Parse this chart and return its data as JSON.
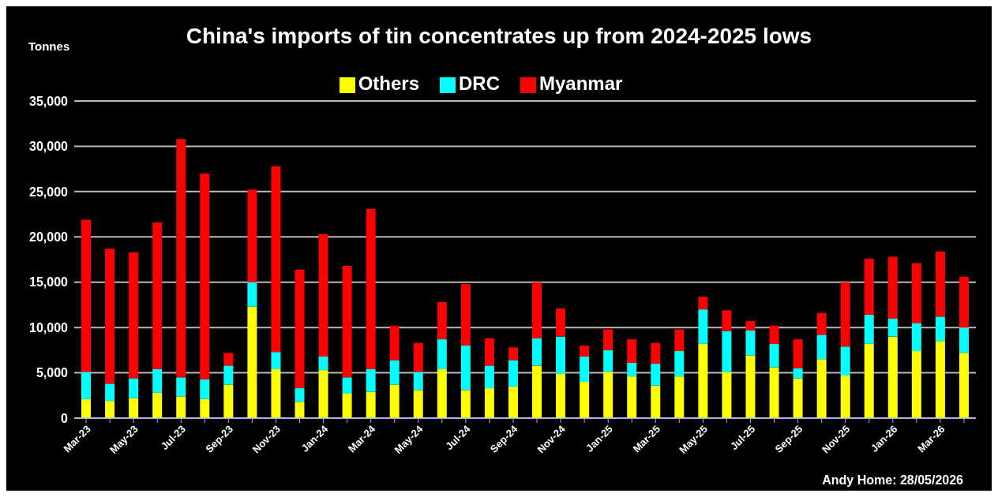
{
  "chart_data": {
    "type": "bar",
    "title": "China's imports of tin concentrates up from 2024-2025 lows",
    "ylabel": "Tonnes",
    "annotations": [
      "Andy Home: 28/05/2026"
    ],
    "categories": [
      "Mar-23",
      null,
      "May-23",
      null,
      "Jul-23",
      null,
      "Sep-23",
      null,
      "Nov-23",
      null,
      "Jan-24",
      null,
      "Mar-24",
      null,
      "May-24",
      null,
      "Jul-24",
      null,
      "Sep-24",
      null,
      "Nov-24",
      null,
      "Jan-25",
      null,
      "Mar-25",
      null,
      "May-25",
      null,
      "Jul-25",
      null,
      "Sep-25",
      null,
      "Nov-25",
      null,
      "Jan-26",
      null,
      "Mar-26",
      null
    ],
    "stacked": true,
    "series": [
      {
        "name": "Others",
        "color": "#ffff00",
        "values": [
          2100,
          1900,
          2200,
          2800,
          2400,
          2100,
          3700,
          12300,
          5400,
          1800,
          5300,
          2700,
          2900,
          3700,
          3100,
          5400,
          3100,
          3300,
          3500,
          5800,
          4900,
          4000,
          5100,
          4600,
          3600,
          4600,
          8200,
          5100,
          6900,
          5600,
          4400,
          6500,
          4700,
          8200,
          9000,
          7400,
          8500,
          7200
        ]
      },
      {
        "name": "DRC",
        "color": "#00ffff",
        "values": [
          3000,
          1900,
          2200,
          2600,
          2100,
          2200,
          2100,
          2700,
          1900,
          1500,
          1500,
          1800,
          2500,
          2700,
          2000,
          3300,
          4900,
          2500,
          2900,
          3000,
          4100,
          2800,
          2400,
          1500,
          2400,
          2800,
          3800,
          4500,
          2800,
          2600,
          1100,
          2700,
          3200,
          3200,
          2000,
          3100,
          2700,
          2800
        ]
      },
      {
        "name": "Myanmar",
        "color": "#ff0000",
        "values": [
          16800,
          14900,
          13900,
          16200,
          26300,
          22700,
          1400,
          10200,
          20500,
          13100,
          13500,
          12300,
          17700,
          3800,
          3200,
          4100,
          6800,
          3000,
          1400,
          6200,
          3100,
          1200,
          2300,
          2600,
          2300,
          2400,
          1400,
          2300,
          1000,
          2000,
          3200,
          2400,
          7100,
          6200,
          6800,
          6600,
          7200,
          5600
        ]
      }
    ],
    "ylim": [
      0,
      35000
    ],
    "yticks": [
      0,
      {
        "value": 5000,
        "label": "5,000"
      },
      {
        "value": 10000,
        "label": "10,000"
      },
      {
        "value": 15000,
        "label": "15,000"
      },
      {
        "value": 20000,
        "label": "20,000"
      },
      {
        "value": 25000,
        "label": "25,000"
      },
      {
        "value": 30000,
        "label": "30,000"
      },
      {
        "value": 35000,
        "label": "35,000"
      }
    ],
    "grid": "y",
    "legend": "top"
  }
}
